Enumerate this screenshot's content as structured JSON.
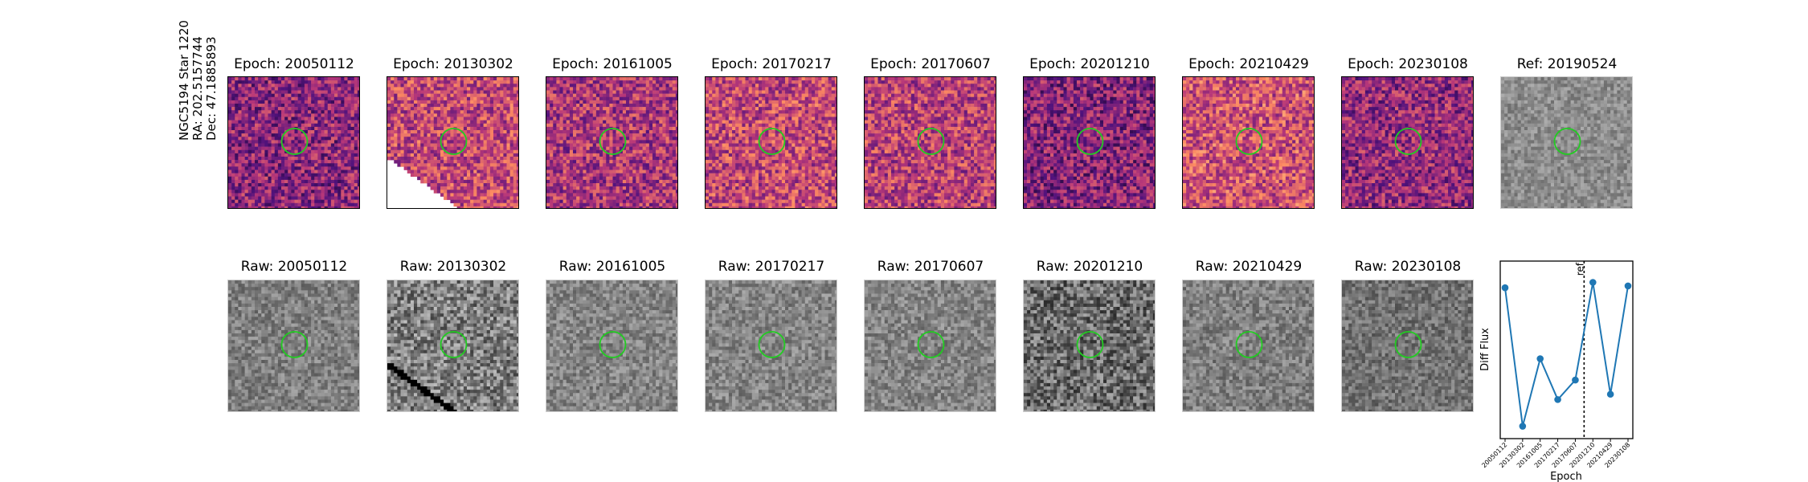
{
  "object_label": {
    "name": "NGC5194 Star 1220",
    "ra": "RA: 202.5157744",
    "dec": "Dec: 47.1885893"
  },
  "diff_titles": [
    "Epoch: 20050112",
    "Epoch: 20130302",
    "Epoch: 20161005",
    "Epoch: 20170217",
    "Epoch: 20170607",
    "Epoch: 20201210",
    "Epoch: 20210429",
    "Epoch: 20230108"
  ],
  "ref_title": "Ref: 20190524",
  "raw_titles": [
    "Raw: 20050112",
    "Raw: 20130302",
    "Raw: 20161005",
    "Raw: 20170217",
    "Raw: 20170607",
    "Raw: 20201210",
    "Raw: 20210429",
    "Raw: 20230108"
  ],
  "colors": {
    "circle": "#22cc22",
    "line": "#1f77b4",
    "ref_line": "#000000"
  },
  "chart_data": {
    "type": "line",
    "categories": [
      "20050112",
      "20130302",
      "20161005",
      "20170217",
      "20170607",
      "20201210",
      "20210429",
      "20230108"
    ],
    "values": [
      0.85,
      0.07,
      0.45,
      0.22,
      0.33,
      0.88,
      0.25,
      0.86
    ],
    "ylim": [
      0,
      1
    ],
    "ref_label": "ref",
    "ref_position": "between 20170607 and 20201210",
    "xlabel": "Epoch",
    "ylabel": "Diff Flux",
    "grid": false,
    "y_ticks_shown": false
  }
}
